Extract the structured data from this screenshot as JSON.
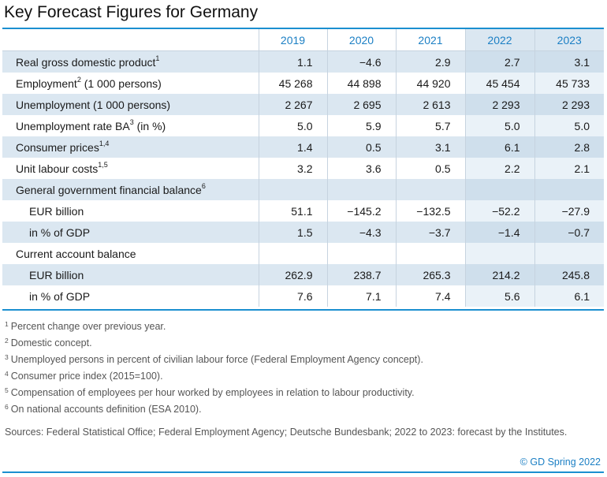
{
  "title": "Key Forecast Figures for Germany",
  "years": [
    "2019",
    "2020",
    "2021",
    "2022",
    "2023"
  ],
  "rows": [
    {
      "label": "Real gross domestic product",
      "sup": "1",
      "values": [
        "1.1",
        "−4.6",
        "2.9",
        "2.7",
        "3.1"
      ]
    },
    {
      "label": "Employment",
      "sup": "2",
      "suffix": " (1 000 persons)",
      "values": [
        "45 268",
        "44 898",
        "44 920",
        "45 454",
        "45 733"
      ]
    },
    {
      "label": "Unemployment (1 000 persons)",
      "values": [
        "2 267",
        "2 695",
        "2 613",
        "2 293",
        "2 293"
      ]
    },
    {
      "label": "Unemployment rate BA",
      "sup": "3",
      "suffix": " (in %)",
      "values": [
        "5.0",
        "5.9",
        "5.7",
        "5.0",
        "5.0"
      ]
    },
    {
      "label": "Consumer prices",
      "sup": "1,4",
      "values": [
        "1.4",
        "0.5",
        "3.1",
        "6.1",
        "2.8"
      ]
    },
    {
      "label": "Unit labour costs",
      "sup": "1,5",
      "values": [
        "3.2",
        "3.6",
        "0.5",
        "2.2",
        "2.1"
      ]
    },
    {
      "label": "General government financial balance",
      "sup": "6",
      "values": [
        "",
        "",
        "",
        "",
        ""
      ]
    },
    {
      "label": "EUR billion",
      "values": [
        "51.1",
        "−145.2",
        "−132.5",
        "−52.2",
        "−27.9"
      ]
    },
    {
      "label": "in % of GDP",
      "values": [
        "1.5",
        "−4.3",
        "−3.7",
        "−1.4",
        "−0.7"
      ]
    },
    {
      "label": "Current account balance",
      "values": [
        "",
        "",
        "",
        "",
        ""
      ]
    },
    {
      "label": "EUR billion",
      "values": [
        "262.9",
        "238.7",
        "265.3",
        "214.2",
        "245.8"
      ]
    },
    {
      "label": "in % of GDP",
      "values": [
        "7.6",
        "7.1",
        "7.4",
        "5.6",
        "6.1"
      ]
    }
  ],
  "footnotes": [
    {
      "num": "1",
      "text": "Percent change over previous year."
    },
    {
      "num": "2",
      "text": "Domestic concept."
    },
    {
      "num": "3",
      "text": "Unemployed persons in percent of civilian labour force (Federal Employment Agency concept)."
    },
    {
      "num": "4",
      "text": "Consumer price index (2015=100)."
    },
    {
      "num": "5",
      "text": "Compensation of employees per hour worked by employees in relation to labour productivity."
    },
    {
      "num": "6",
      "text": "On national accounts definition (ESA 2010)."
    }
  ],
  "sources": "Sources: Federal Statistical Office; Federal Employment Agency; Deutsche Bundesbank; 2022 to 2023: forecast by the Institutes.",
  "copyright": "© GD Spring 2022",
  "colors": {
    "accent": "#1b8fd0",
    "header_text": "#1b7fc4",
    "band": "#dbe7f1"
  }
}
